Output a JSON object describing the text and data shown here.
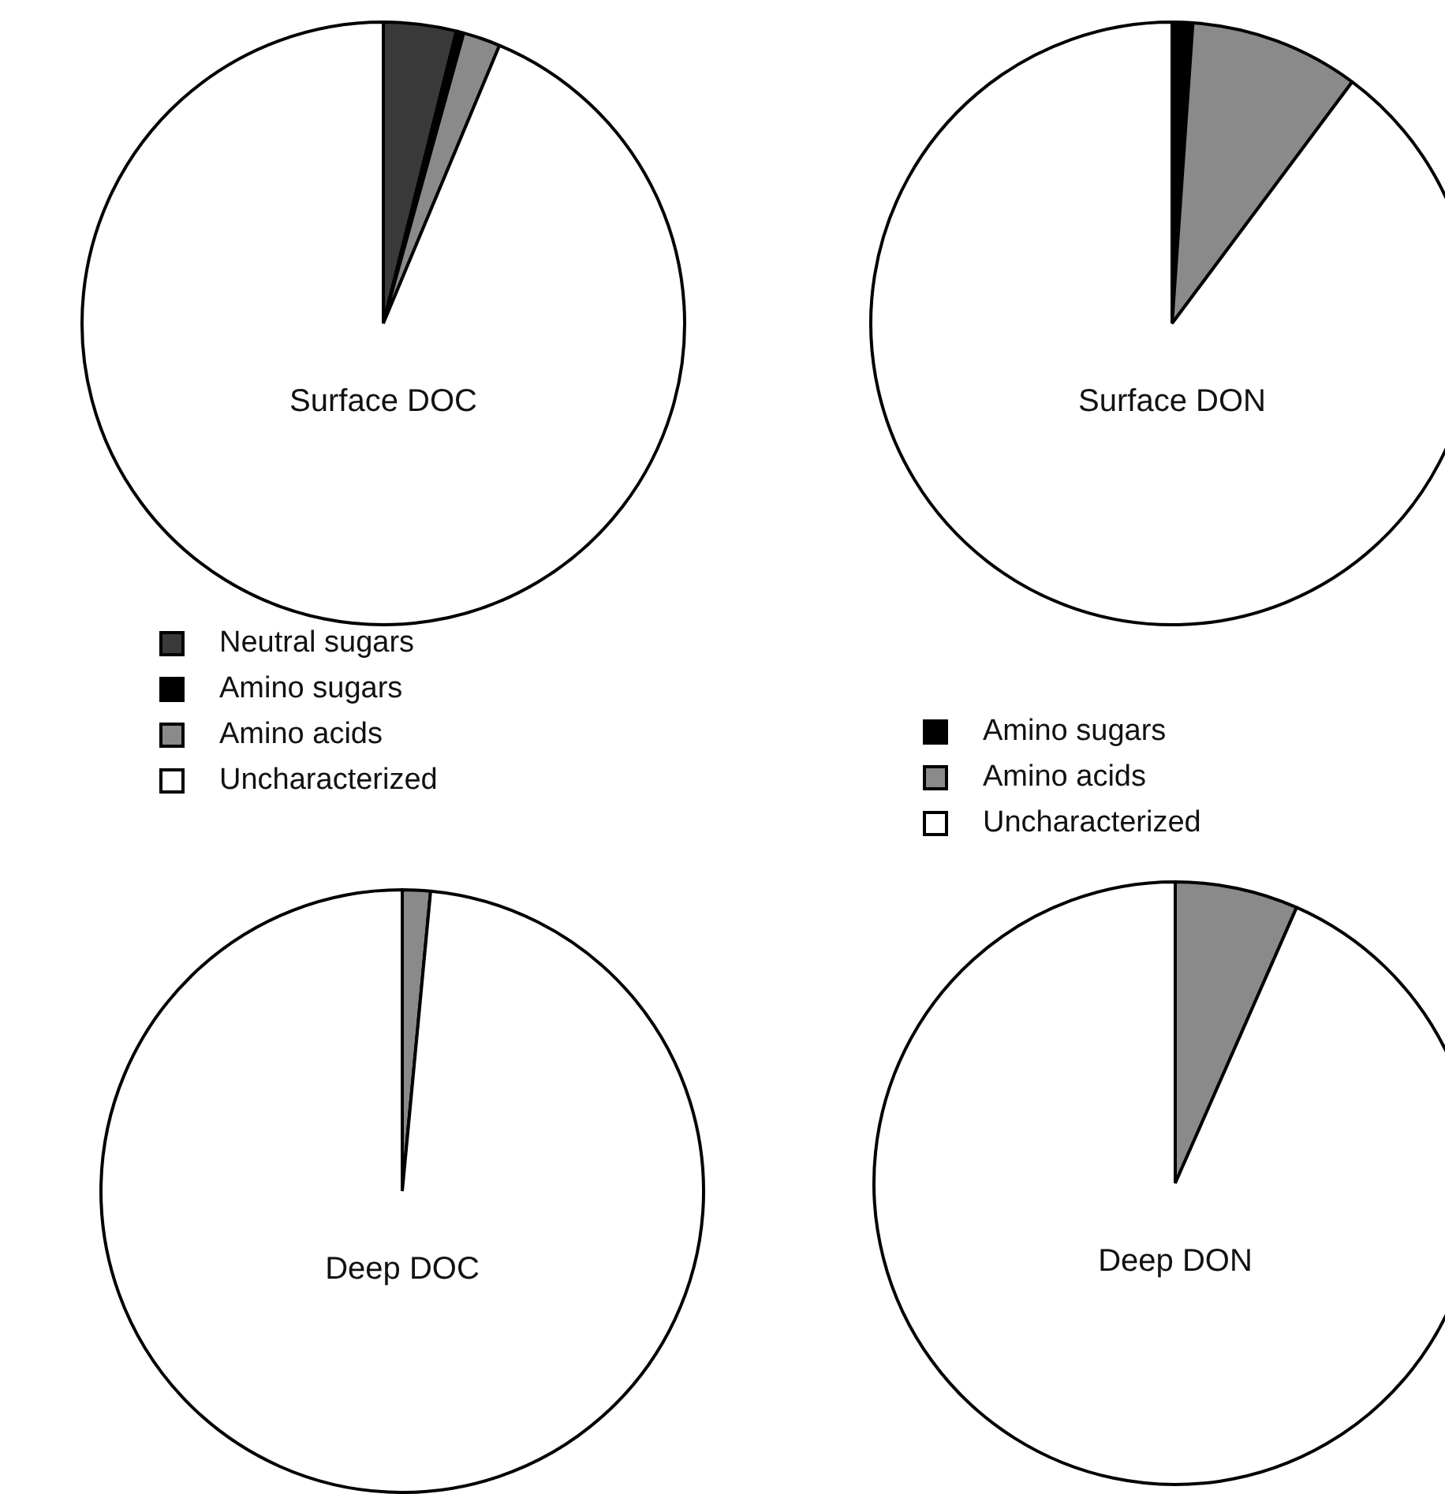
{
  "chart_data": [
    {
      "type": "pie",
      "title": "Surface DOC",
      "categories": [
        "Neutral sugars",
        "Amino sugars",
        "Amino acids",
        "Uncharacterized"
      ],
      "values": [
        3.9,
        0.4,
        2.0,
        93.7
      ],
      "colors": [
        "#3a3a3a",
        "#000000",
        "#8a8a8a",
        "#ffffff"
      ],
      "legend": "bottom"
    },
    {
      "type": "pie",
      "title": "Surface DON",
      "categories": [
        "Amino sugars",
        "Amino acids",
        "Uncharacterized"
      ],
      "values": [
        1.1,
        9.1,
        89.8
      ],
      "colors": [
        "#000000",
        "#8a8a8a",
        "#ffffff"
      ],
      "legend": "bottom"
    },
    {
      "type": "pie",
      "title": "Deep DOC",
      "categories": [
        null,
        null,
        null,
        null
      ],
      "values": [
        null,
        null,
        1.5,
        98.5
      ],
      "colors": [
        "#3a3a3a",
        "#000000",
        "#8a8a8a",
        "#ffffff"
      ]
    },
    {
      "type": "pie",
      "title": "Deep DON",
      "categories": [
        null,
        null,
        null
      ],
      "values": [
        null,
        6.6,
        93.4
      ],
      "colors": [
        "#000000",
        "#8a8a8a",
        "#ffffff"
      ]
    }
  ]
}
